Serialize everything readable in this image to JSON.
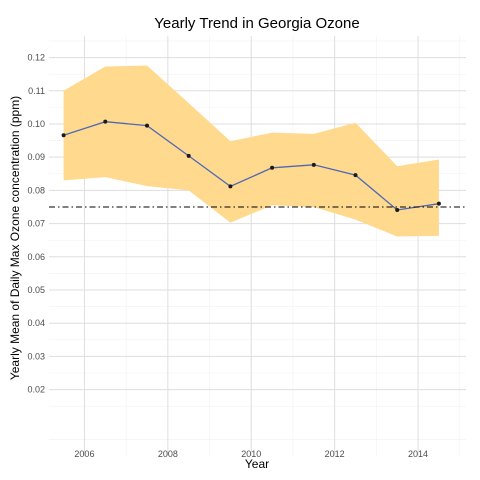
{
  "chart_data": {
    "type": "line",
    "title": "Yearly Trend in Georgia Ozone",
    "xlabel": "Year",
    "ylabel": "Yearly Mean of Daily Max Ozone concentration (ppm)",
    "xlim": [
      2005.15,
      2015.15
    ],
    "ylim": [
      0.0,
      0.1265
    ],
    "x_ticks": [
      2006,
      2008,
      2010,
      2012,
      2014
    ],
    "y_ticks": [
      0.02,
      0.03,
      0.04,
      0.05,
      0.06,
      0.07,
      0.08,
      0.09,
      0.1,
      0.11,
      0.12
    ],
    "x_tick_labels": [
      "2006",
      "2008",
      "2010",
      "2012",
      "2014"
    ],
    "y_tick_labels": [
      "0.02",
      "0.03",
      "0.04",
      "0.05",
      "0.06",
      "0.07",
      "0.08",
      "0.09",
      "0.10",
      "0.11",
      "0.12"
    ],
    "grid": true,
    "x": [
      2005.5,
      2006.5,
      2007.5,
      2008.5,
      2009.5,
      2010.5,
      2011.5,
      2012.5,
      2013.5,
      2014.5
    ],
    "series": [
      {
        "values": [
          0.0966,
          0.1007,
          0.0995,
          0.0904,
          0.0812,
          0.0868,
          0.0877,
          0.0846,
          0.0741,
          0.076
        ],
        "color": "#4e69b3"
      }
    ],
    "band": {
      "upper": [
        0.11,
        0.1173,
        0.1176,
        0.1063,
        0.0948,
        0.0974,
        0.097,
        0.1004,
        0.0873,
        0.0893
      ],
      "lower": [
        0.083,
        0.084,
        0.0813,
        0.08,
        0.0703,
        0.0755,
        0.075,
        0.0712,
        0.0661,
        0.0663
      ],
      "color": "#ffd98e"
    },
    "reference_line": {
      "y": 0.075,
      "style": "dashdot",
      "color": "#000000"
    }
  }
}
